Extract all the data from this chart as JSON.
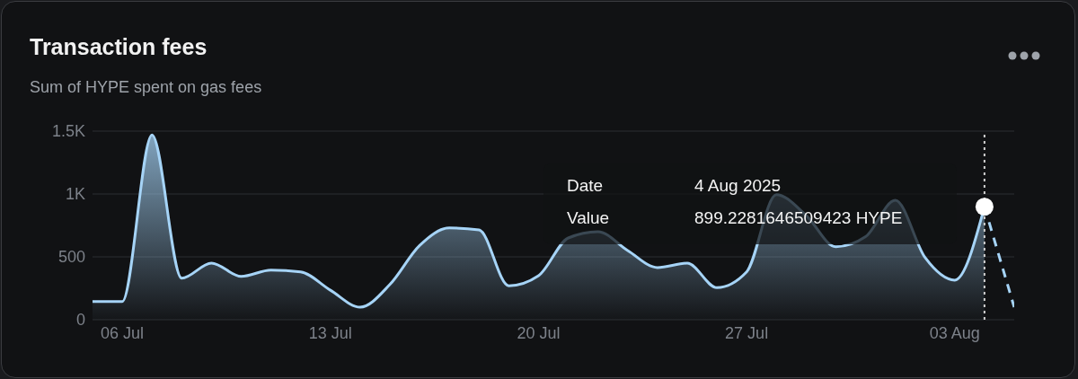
{
  "chart_data": {
    "type": "area",
    "title": "Transaction fees",
    "subtitle": "Sum of HYPE spent on gas fees",
    "xlim": [
      "2025-07-05",
      "2025-08-05"
    ],
    "xticks": [
      {
        "value": "2025-07-06",
        "label": "06 Jul"
      },
      {
        "value": "2025-07-13",
        "label": "13 Jul"
      },
      {
        "value": "2025-07-20",
        "label": "20 Jul"
      },
      {
        "value": "2025-07-27",
        "label": "27 Jul"
      },
      {
        "value": "2025-08-03",
        "label": "03 Aug"
      }
    ],
    "ylim": [
      0,
      1500
    ],
    "yticks": [
      0,
      500,
      {
        "value": 1000,
        "label": "1K"
      },
      {
        "value": 1500,
        "label": "1.5K"
      }
    ],
    "grid": "y",
    "series": [
      {
        "color": "#a6d4f7",
        "marker": "none",
        "line_style": "solid",
        "x": [
          "2025-07-05",
          "2025-07-06",
          "2025-07-07",
          "2025-07-08",
          "2025-07-09",
          "2025-07-10",
          "2025-07-11",
          "2025-07-12",
          "2025-07-13",
          "2025-07-14",
          "2025-07-15",
          "2025-07-16",
          "2025-07-17",
          "2025-07-18",
          "2025-07-19",
          "2025-07-20",
          "2025-07-21",
          "2025-07-22",
          "2025-07-23",
          "2025-07-24",
          "2025-07-25",
          "2025-07-26",
          "2025-07-27",
          "2025-07-28",
          "2025-07-29",
          "2025-07-30",
          "2025-07-31",
          "2025-08-01",
          "2025-08-02",
          "2025-08-03",
          "2025-08-04"
        ],
        "values": [
          145,
          145,
          1470,
          330,
          450,
          345,
          395,
          380,
          235,
          100,
          280,
          590,
          730,
          715,
          270,
          350,
          650,
          700,
          550,
          415,
          450,
          255,
          380,
          995,
          830,
          580,
          660,
          950,
          495,
          315,
          899
        ]
      },
      {
        "type": "line",
        "color": "#a6d4f7",
        "marker": "none",
        "line_style": "dashed",
        "x": [
          "2025-08-04",
          "2025-08-05"
        ],
        "values": [
          899,
          100
        ]
      },
      {
        "type": "scatter",
        "color": "#ffffff",
        "marker": "circle",
        "x": [
          "2025-08-04"
        ],
        "values": [
          899
        ]
      }
    ],
    "ref_lines": [
      {
        "axis": "x",
        "value": "2025-08-04",
        "color": "#d0d0d0",
        "line_style": "dotted"
      }
    ],
    "annotations": [
      "Date",
      "4 Aug 2025",
      "Value",
      "899.2281646509423 HYPE"
    ]
  }
}
